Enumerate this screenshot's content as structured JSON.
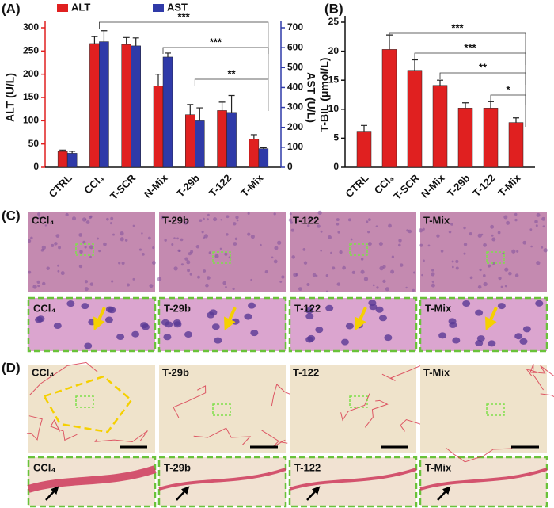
{
  "chart_data": [
    {
      "type": "bar",
      "panel_label": "(A)",
      "categories": [
        "CTRL",
        "CCl₄",
        "T-SCR",
        "N-Mix",
        "T-29b",
        "T-122",
        "T-Mix"
      ],
      "ylabel": "ALT (U/L)",
      "y2label": "AST (U/L)",
      "ylim": [
        0,
        300
      ],
      "yticks": [
        0,
        50,
        100,
        150,
        200,
        250,
        300
      ],
      "y2lim": [
        0,
        700
      ],
      "y2ticks": [
        0,
        100,
        200,
        300,
        400,
        500,
        600,
        700
      ],
      "series": [
        {
          "name": "ALT",
          "color": "#e02020",
          "values": [
            34,
            266,
            264,
            175,
            113,
            122,
            60
          ],
          "errors": [
            3,
            15,
            15,
            25,
            22,
            18,
            10
          ]
        },
        {
          "name": "AST",
          "color": "#2f3aa8",
          "axis": "y2",
          "values": [
            70,
            630,
            609,
            553,
            233,
            275,
            93
          ],
          "errors": [
            10,
            55,
            40,
            20,
            65,
            85,
            5
          ]
        }
      ],
      "annotations": [
        "***",
        "***",
        "**"
      ]
    },
    {
      "type": "bar",
      "panel_label": "(B)",
      "categories": [
        "CTRL",
        "CCl₄",
        "T-SCR",
        "N-Mix",
        "T-29b",
        "T-122",
        "T-Mix"
      ],
      "ylabel": "T-BIL (μmol/L)",
      "ylim": [
        0,
        25
      ],
      "yticks": [
        0,
        5,
        10,
        15,
        20,
        25
      ],
      "series": [
        {
          "color": "#e02020",
          "values": [
            6.2,
            20.3,
            16.7,
            14.1,
            10.2,
            10.2,
            7.7
          ],
          "errors": [
            1.0,
            2.5,
            1.8,
            0.9,
            0.9,
            1.1,
            0.8
          ]
        }
      ],
      "annotations": [
        "***",
        "***",
        "**",
        "*"
      ]
    }
  ],
  "panels": [
    {
      "label": "(C)",
      "images": [
        "CCl₄",
        "T-29b",
        "T-122",
        "T-Mix"
      ],
      "zooms": [
        "CCl₄",
        "T-29b",
        "T-122",
        "T-Mix"
      ]
    },
    {
      "label": "(D)",
      "images": [
        "CCl₄",
        "T-29b",
        "T-122",
        "T-Mix"
      ],
      "zooms": [
        "CCl₄",
        "T-29b",
        "T-122",
        "T-Mix"
      ]
    }
  ]
}
